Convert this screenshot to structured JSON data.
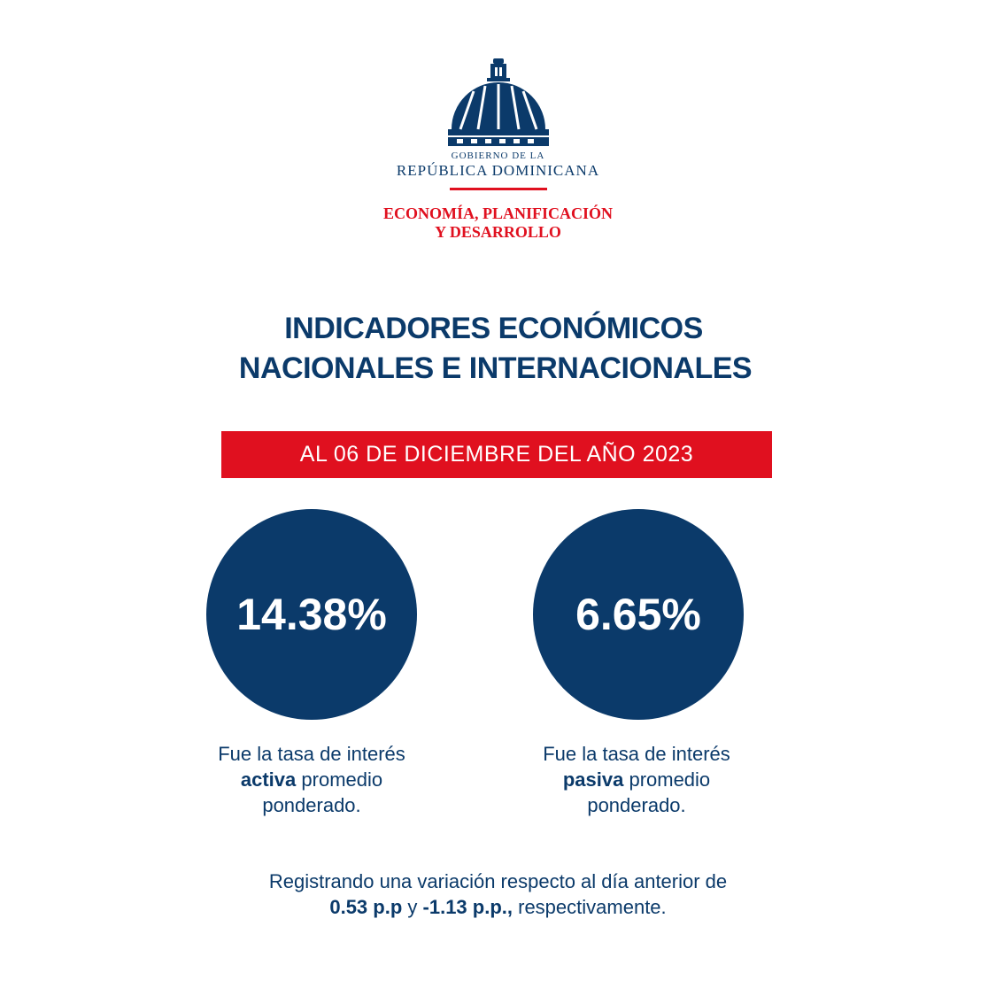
{
  "logo": {
    "line1": "GOBIERNO DE LA",
    "line2": "REPÚBLICA DOMINICANA",
    "ministry1": "ECONOMÍA, PLANIFICACIÓN",
    "ministry2": "Y DESARROLLO"
  },
  "title": {
    "line1": "INDICADORES ECONÓMICOS",
    "line2": "NACIONALES E INTERNACIONALES"
  },
  "date_banner": "AL 06 DE DICIEMBRE DEL AÑO 2023",
  "indicators": [
    {
      "value": "14.38%",
      "lead": "Fue la tasa de interés",
      "emphasis": "activa",
      "tail": "promedio ponderado."
    },
    {
      "value": "6.65%",
      "lead": "Fue la tasa de interés",
      "emphasis": "pasiva",
      "tail": "promedio ponderado."
    }
  ],
  "footer": {
    "line1": "Registrando una variación respecto al día anterior de",
    "value1": "0.53 p.p",
    "joiner": "y",
    "value2": "-1.13 p.p.,",
    "end": "respectivamente."
  }
}
